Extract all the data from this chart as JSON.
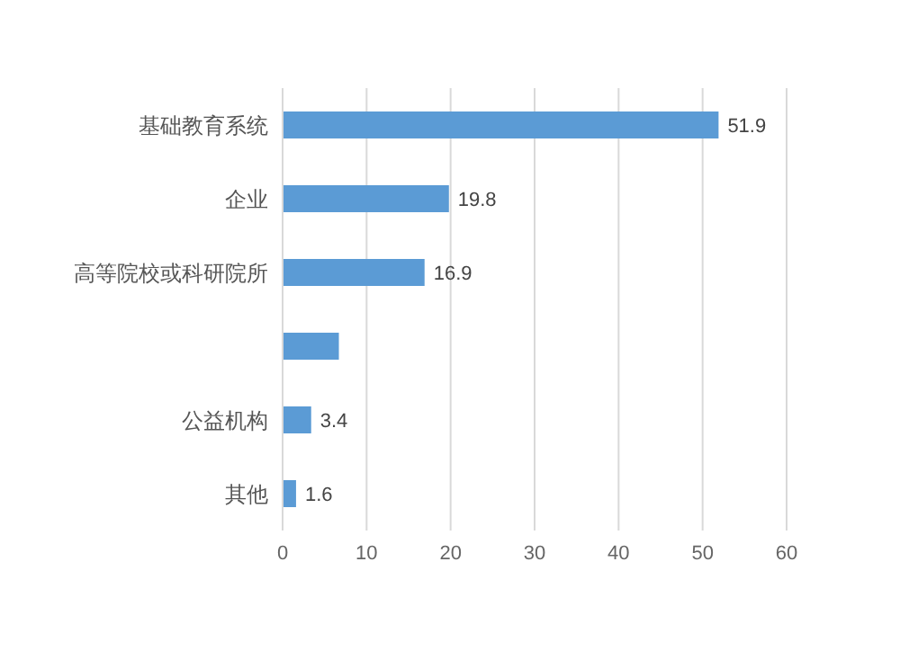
{
  "chart_data": {
    "type": "bar",
    "orientation": "horizontal",
    "categories": [
      "基础教育系统",
      "企业",
      "高等院校或科研院所",
      null,
      "公益机构",
      "其他"
    ],
    "values": [
      51.9,
      19.8,
      16.9,
      6.7,
      3.4,
      1.6
    ],
    "value_labels": [
      "51.9",
      "19.8",
      "16.9",
      null,
      "3.4",
      "1.6"
    ],
    "color": "#5b9bd5",
    "xlim": [
      0,
      60
    ],
    "xticks": [
      0,
      10,
      20,
      30,
      40,
      50,
      60
    ],
    "grid": "x"
  }
}
